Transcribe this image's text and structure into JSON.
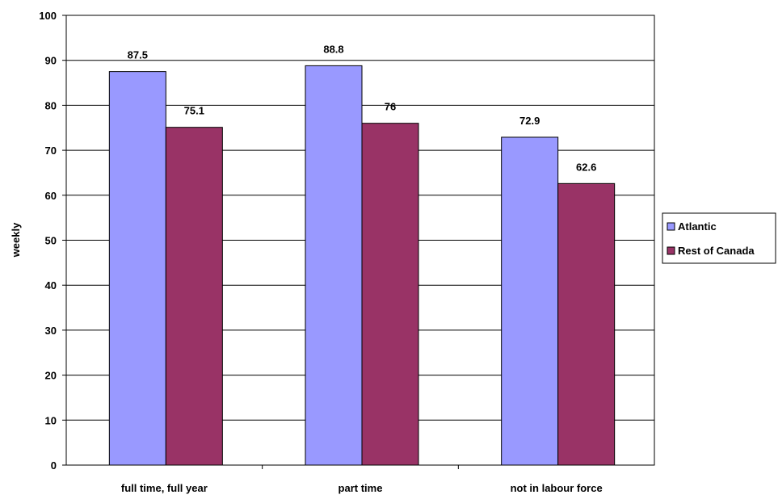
{
  "chart_data": {
    "type": "bar",
    "title": "",
    "xlabel": "",
    "ylabel": "weekly",
    "ylim": [
      0,
      100
    ],
    "yticks": [
      0,
      10,
      20,
      30,
      40,
      50,
      60,
      70,
      80,
      90,
      100
    ],
    "grid": true,
    "legend_position": "right",
    "categories": [
      "full time, full year",
      "part time",
      "not in labour force"
    ],
    "series": [
      {
        "name": "Atlantic",
        "color": "#9999ff",
        "values": [
          87.5,
          88.8,
          72.9
        ],
        "labels": [
          "87.5",
          "88.8",
          "72.9"
        ]
      },
      {
        "name": "Rest of Canada",
        "color": "#993366",
        "values": [
          75.1,
          76,
          62.6
        ],
        "labels": [
          "75.1",
          "76",
          "62.6"
        ]
      }
    ]
  }
}
